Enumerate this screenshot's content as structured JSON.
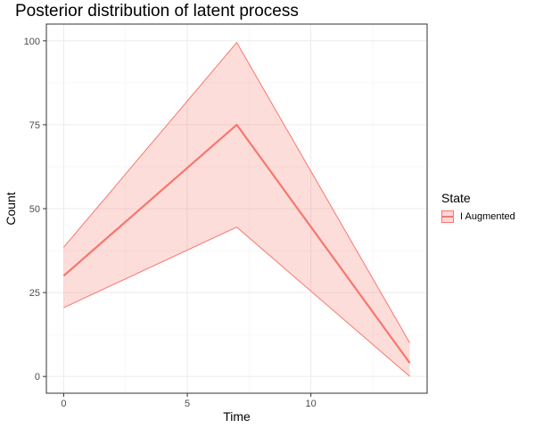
{
  "chart_data": {
    "type": "line",
    "title": "Posterior distribution of latent process",
    "xlabel": "Time",
    "ylabel": "Count",
    "xlim": [
      -0.7,
      14.7
    ],
    "ylim": [
      -5,
      105
    ],
    "xticks": [
      0,
      5,
      10
    ],
    "yticks": [
      0,
      25,
      50,
      75,
      100
    ],
    "grid": true,
    "legend_title": "State",
    "legend_position": "right",
    "series": [
      {
        "name": "I Augmented",
        "color": "#F8766D",
        "x": [
          0,
          7,
          14
        ],
        "median": [
          30,
          75,
          4
        ],
        "lower": [
          20.5,
          44.5,
          0
        ],
        "upper": [
          38.5,
          99.5,
          10
        ]
      }
    ]
  }
}
